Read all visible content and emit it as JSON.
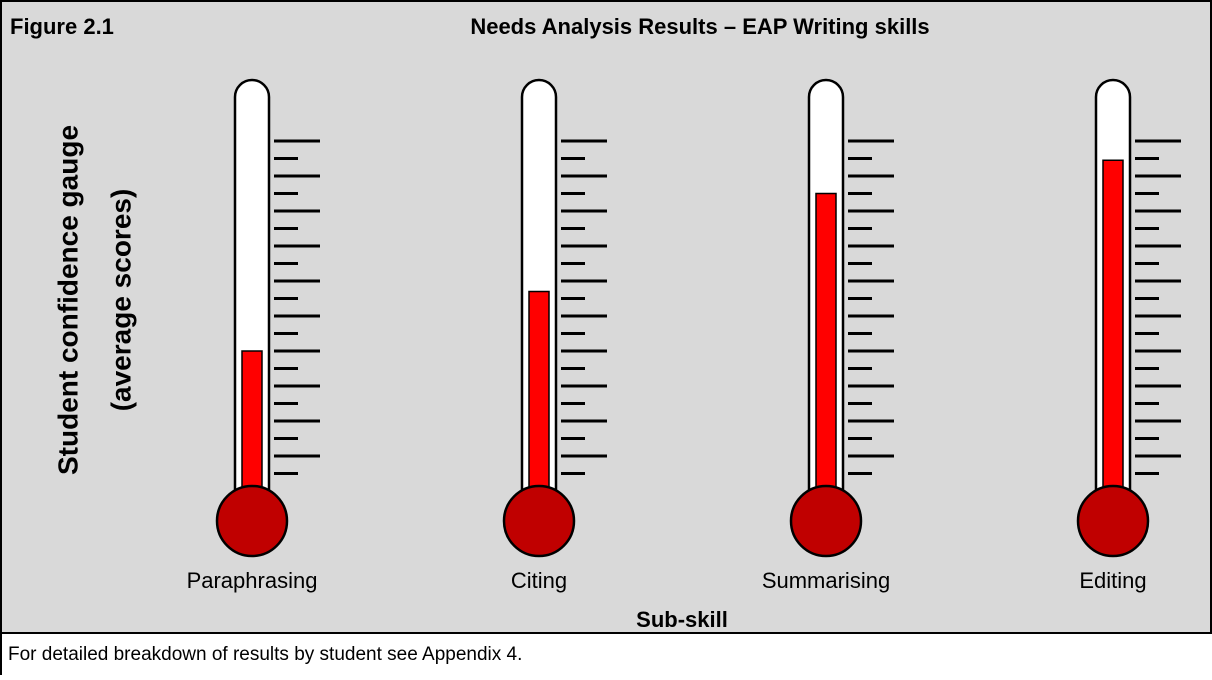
{
  "chart_data": {
    "type": "thermometer",
    "figure_label": "Figure 2.1",
    "title": "Needs Analysis Results – EAP Writing skills",
    "y_label": [
      "Student confidence gauge",
      "(average scores)"
    ],
    "x_label": "Sub-skill",
    "note": "For detailed breakdown of results by student see Appendix 4.",
    "categories": [
      "Paraphrasing",
      "Citing",
      "Summarising",
      "Editing"
    ],
    "values": [
      8,
      11.4,
      17,
      18.9
    ],
    "color": "#ff0000",
    "bulb_color": "#c00000",
    "ylim": [
      0,
      20
    ],
    "yticks": [
      1,
      2,
      3,
      4,
      5,
      6,
      7,
      8,
      9,
      10,
      11,
      12,
      13,
      14,
      15,
      16,
      17,
      18,
      19,
      20
    ]
  }
}
